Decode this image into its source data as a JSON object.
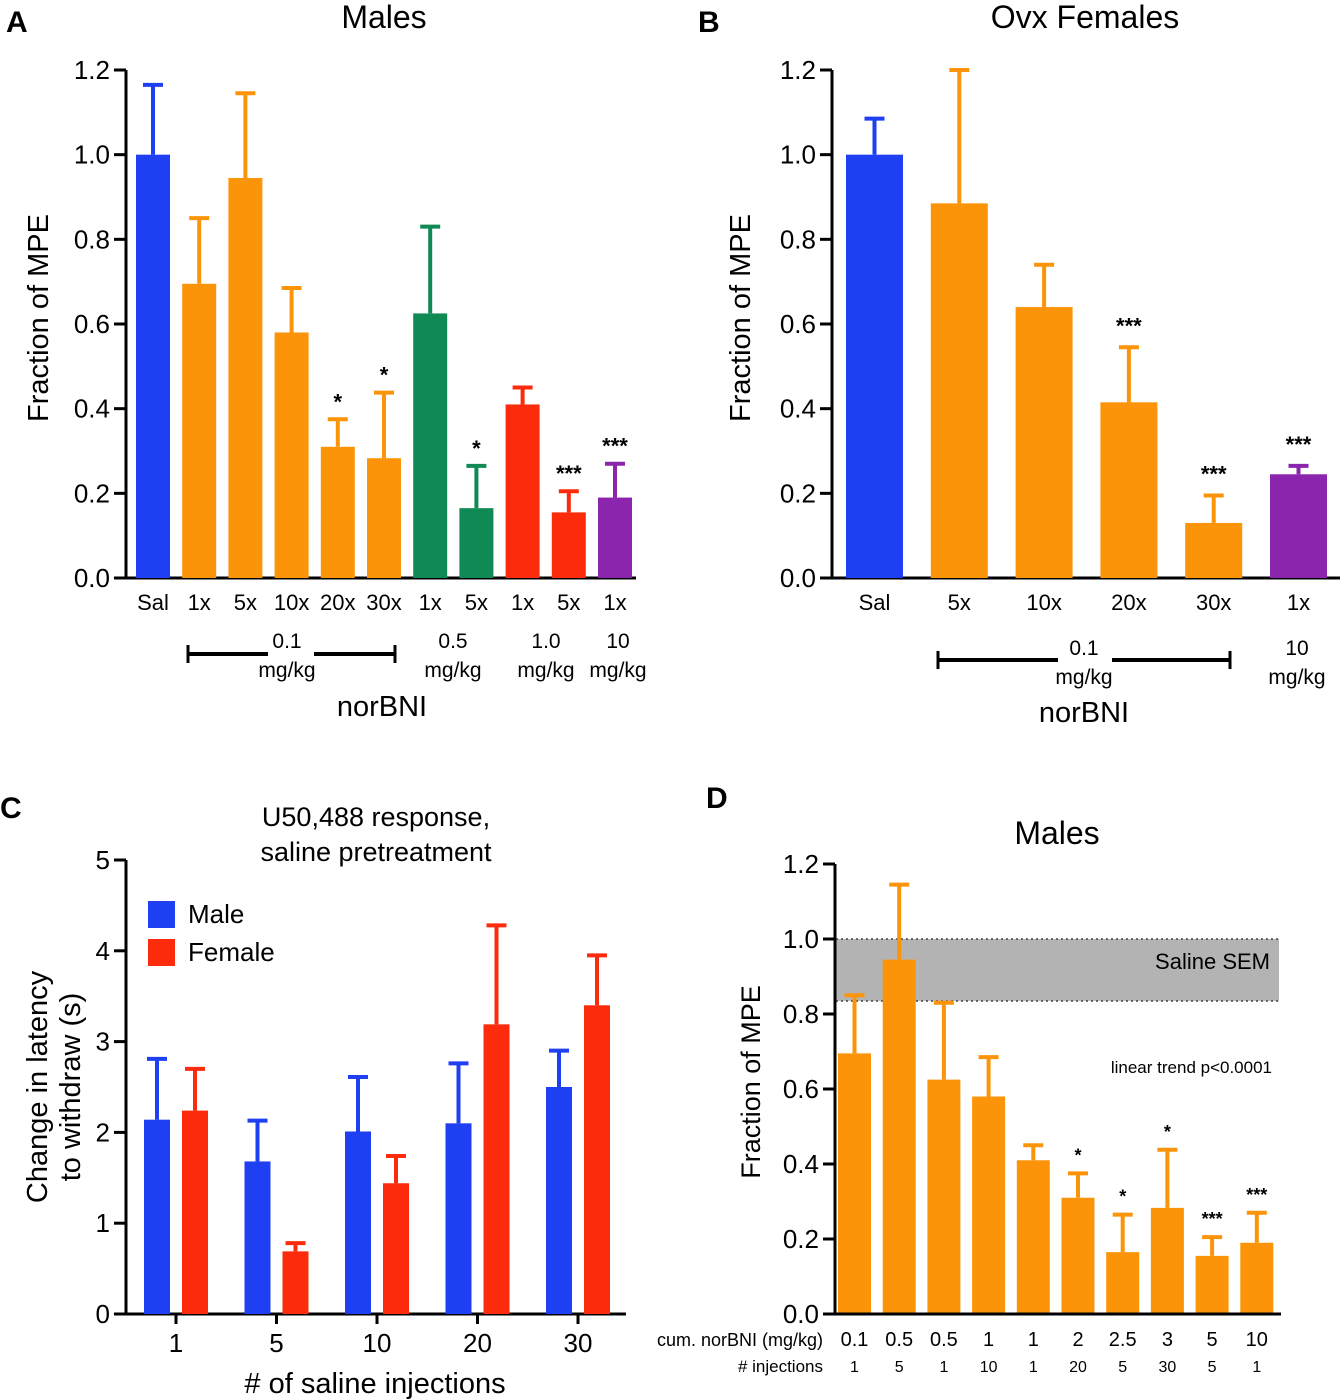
{
  "colors": {
    "saline": "#1f3ff2",
    "orange": "#fb9408",
    "green": "#108a55",
    "red": "#fb2b0c",
    "purple": "#8b25ad",
    "male": "#1f3ff2",
    "female": "#fb2b0c",
    "band": "#b3b3b3"
  },
  "chart_data": [
    {
      "panel": "A",
      "type": "bar",
      "title": "Males",
      "ylabel": "Fraction of MPE",
      "ylim": [
        0,
        1.2
      ],
      "yticks": [
        "0.0",
        "0.2",
        "0.4",
        "0.6",
        "0.8",
        "1.0",
        "1.2"
      ],
      "categories": [
        "Sal",
        "1x",
        "5x",
        "10x",
        "20x",
        "30x",
        "1x",
        "5x",
        "1x",
        "5x",
        "1x"
      ],
      "values": [
        1.0,
        0.695,
        0.945,
        0.58,
        0.31,
        0.283,
        0.625,
        0.165,
        0.41,
        0.155,
        0.19
      ],
      "errors": [
        0.165,
        0.155,
        0.2,
        0.105,
        0.065,
        0.155,
        0.205,
        0.1,
        0.04,
        0.05,
        0.08
      ],
      "colors": [
        "saline",
        "orange",
        "orange",
        "orange",
        "orange",
        "orange",
        "green",
        "green",
        "red",
        "red",
        "purple"
      ],
      "significance": [
        "",
        "",
        "",
        "",
        "*",
        "*",
        "",
        "*",
        "",
        "***",
        "***"
      ],
      "groups": [
        {
          "dose": "0.1",
          "unit": "mg/kg",
          "bracketed": true
        },
        {
          "dose": "0.5",
          "unit": "mg/kg",
          "bracketed": false
        },
        {
          "dose": "1.0",
          "unit": "mg/kg",
          "bracketed": false
        },
        {
          "dose": "10",
          "unit": "mg/kg",
          "bracketed": false
        }
      ],
      "xlabel": "norBNI"
    },
    {
      "panel": "B",
      "type": "bar",
      "title": "Ovx Females",
      "ylabel": "Fraction of MPE",
      "ylim": [
        0,
        1.2
      ],
      "yticks": [
        "0.0",
        "0.2",
        "0.4",
        "0.6",
        "0.8",
        "1.0",
        "1.2"
      ],
      "categories": [
        "Sal",
        "5x",
        "10x",
        "20x",
        "30x",
        "1x"
      ],
      "values": [
        1.0,
        0.885,
        0.64,
        0.415,
        0.13,
        0.245
      ],
      "errors": [
        0.085,
        0.315,
        0.1,
        0.13,
        0.065,
        0.02
      ],
      "colors": [
        "saline",
        "orange",
        "orange",
        "orange",
        "orange",
        "purple"
      ],
      "significance": [
        "",
        "",
        "",
        "***",
        "***",
        "***"
      ],
      "groups": [
        {
          "dose": "0.1",
          "unit": "mg/kg",
          "bracketed": true
        },
        {
          "dose": "10",
          "unit": "mg/kg",
          "bracketed": false
        }
      ],
      "xlabel": "norBNI"
    },
    {
      "panel": "C",
      "type": "bar",
      "title": "U50,488 response,",
      "subtitle": "saline pretreatment",
      "ylabel": "Change in latency",
      "ylabel2": "to withdraw (s)",
      "xlabel": "# of saline injections",
      "ylim": [
        0,
        5
      ],
      "yticks": [
        "0",
        "1",
        "2",
        "3",
        "4",
        "5"
      ],
      "categories": [
        "1",
        "5",
        "10",
        "20",
        "30"
      ],
      "series": [
        {
          "name": "Male",
          "values": [
            2.14,
            1.68,
            2.01,
            2.1,
            2.5
          ],
          "errors": [
            0.67,
            0.45,
            0.6,
            0.66,
            0.4
          ]
        },
        {
          "name": "Female",
          "values": [
            2.24,
            0.69,
            1.44,
            3.19,
            3.4
          ],
          "errors": [
            0.46,
            0.09,
            0.3,
            1.09,
            0.55
          ]
        }
      ],
      "legend": "top-left"
    },
    {
      "panel": "D",
      "type": "bar",
      "title": "Males",
      "ylabel": "Fraction of MPE",
      "ylim": [
        0,
        1.2
      ],
      "yticks": [
        "0.0",
        "0.2",
        "0.4",
        "0.6",
        "0.8",
        "1.0",
        "1.2"
      ],
      "values": [
        0.695,
        0.945,
        0.625,
        0.58,
        0.41,
        0.31,
        0.165,
        0.283,
        0.155,
        0.19
      ],
      "errors": [
        0.155,
        0.2,
        0.205,
        0.105,
        0.04,
        0.065,
        0.1,
        0.155,
        0.05,
        0.08
      ],
      "significance": [
        "",
        "",
        "",
        "",
        "",
        "*",
        "*",
        "*",
        "***",
        "***"
      ],
      "row1_label": "cum. norBNI (mg/kg)",
      "row1": [
        "0.1",
        "0.5",
        "0.5",
        "1",
        "1",
        "2",
        "2.5",
        "3",
        "5",
        "10"
      ],
      "row2_label": "# injections",
      "row2": [
        "1",
        "5",
        "1",
        "10",
        "1",
        "20",
        "5",
        "30",
        "5",
        "1"
      ],
      "band": {
        "label": "Saline SEM",
        "lower": 0.835,
        "upper": 1.0
      },
      "annotation": "linear trend p<0.0001"
    }
  ]
}
